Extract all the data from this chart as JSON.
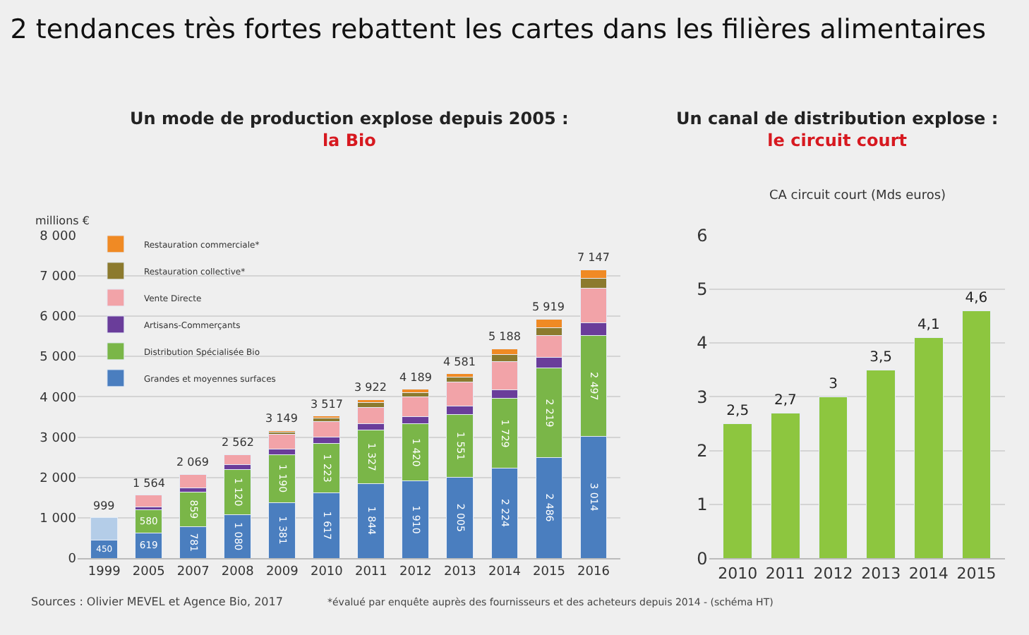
{
  "chart_data": [
    {
      "type": "other",
      "title": "2 tendances très fortes rebattent les cartes dans les filières alimentaires"
    },
    {
      "type": "bar",
      "stacked": true,
      "title": "Un mode de production explose depuis 2005 :",
      "subtitle": "la Bio",
      "ylabel": "millions €",
      "categories": [
        "1999",
        "2005",
        "2007",
        "2008",
        "2009",
        "2010",
        "2011",
        "2012",
        "2013",
        "2014",
        "2015",
        "2016"
      ],
      "series": [
        {
          "name": "Grandes et moyennes surfaces",
          "color": "#4a7ebf",
          "values": [
            450,
            619,
            781,
            1080,
            1381,
            1617,
            1844,
            1910,
            2005,
            2224,
            2486,
            3014
          ],
          "value_labels": [
            "450",
            "619",
            "781",
            "1 080",
            "1 381",
            "1 617",
            "1 844",
            "1 910",
            "2 005",
            "2 224",
            "2 486",
            "3 014"
          ]
        },
        {
          "color": "#b4cde8",
          "values": [
            550,
            null,
            null,
            null,
            null,
            null,
            null,
            null,
            null,
            null,
            null,
            null
          ]
        },
        {
          "name": "Distribution Spécialisée Bio",
          "color": "#7ab648",
          "values": [
            null,
            580,
            859,
            1120,
            1190,
            1223,
            1327,
            1420,
            1551,
            1729,
            2219,
            2497
          ],
          "value_labels": [
            null,
            "580",
            "859",
            "1 120",
            "1 190",
            "1 223",
            "1 327",
            "1 420",
            "1 551",
            "1 729",
            "2 219",
            "2 497"
          ]
        },
        {
          "name": "Artisans-Commerçants",
          "color": "#6a3d9a",
          "values": [
            null,
            65,
            110,
            110,
            140,
            160,
            170,
            180,
            210,
            220,
            270,
            330
          ]
        },
        {
          "name": "Vente Directe",
          "color": "#f2a3a8",
          "values": [
            null,
            300,
            320,
            250,
            360,
            390,
            390,
            480,
            590,
            700,
            540,
            850
          ]
        },
        {
          "name": "Restauration collective*",
          "color": "#8c7a2e",
          "values": [
            null,
            null,
            null,
            null,
            50,
            80,
            120,
            120,
            125,
            170,
            200,
            240
          ]
        },
        {
          "name": "Restauration commerciale*",
          "color": "#f08a24",
          "values": [
            null,
            null,
            null,
            null,
            30,
            50,
            70,
            80,
            100,
            145,
            200,
            220
          ]
        }
      ],
      "totals": [
        "999",
        "1 564",
        "2 069",
        "2 562",
        "3 149",
        "3 517",
        "3 922",
        "4 189",
        "4 581",
        "5 188",
        "5 919",
        "7 147"
      ],
      "ylim": [
        0,
        8000
      ],
      "yticks": [
        0,
        {
          "value": 1000,
          "label": "1 000"
        },
        {
          "value": 2000,
          "label": "2 000"
        },
        {
          "value": 3000,
          "label": "3 000"
        },
        {
          "value": 4000,
          "label": "4 000"
        },
        {
          "value": 5000,
          "label": "5 000"
        },
        {
          "value": 6000,
          "label": "6 000"
        },
        {
          "value": 7000,
          "label": "7 000"
        },
        {
          "value": 8000,
          "label": "8 000"
        }
      ],
      "grid": "y",
      "legend": "top left",
      "annotations": [
        "Sources : Olivier MEVEL et Agence Bio, 2017",
        "*évalué par enquête auprès des fournisseurs et des acheteurs depuis 2014 - (schéma HT)"
      ]
    },
    {
      "type": "bar",
      "title": "Un canal de distribution explose :",
      "subtitle": "le circuit court",
      "ylabel": "CA circuit court (Mds euros)",
      "categories": [
        "2010",
        "2011",
        "2012",
        "2013",
        "2014",
        "2015"
      ],
      "series": [
        {
          "color": "#8dc63f",
          "values": [
            2.5,
            2.7,
            3,
            3.5,
            4.1,
            4.6
          ],
          "value_labels": [
            "2,5",
            "2,7",
            "3",
            "3,5",
            "4,1",
            "4,6"
          ]
        }
      ],
      "ylim": [
        0,
        6
      ],
      "yticks": [
        0,
        1,
        2,
        3,
        4,
        5,
        6
      ],
      "grid": "y"
    }
  ]
}
